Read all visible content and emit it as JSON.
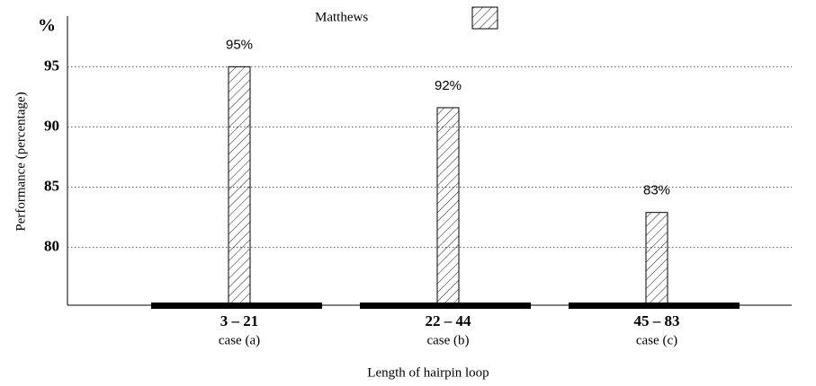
{
  "chart_data": {
    "type": "bar",
    "unit_label": "%",
    "y_label": "Performance (percentage)",
    "x_label": "Length of hairpin loop",
    "categories": [
      "3 – 21",
      "22 – 44",
      "45 – 83"
    ],
    "category_notes": [
      "case (a)",
      "case (b)",
      "case (c)"
    ],
    "series": [
      {
        "name": "Matthews",
        "color": "#000000",
        "values": [
          95,
          91.6,
          82.9
        ],
        "value_labels": [
          "95%",
          "92%",
          "83%"
        ]
      }
    ],
    "ylim": [
      75.2,
      99.2
    ],
    "yticks": [
      80,
      85,
      90,
      95
    ],
    "grid": true,
    "hatch": true,
    "legend": "top"
  }
}
